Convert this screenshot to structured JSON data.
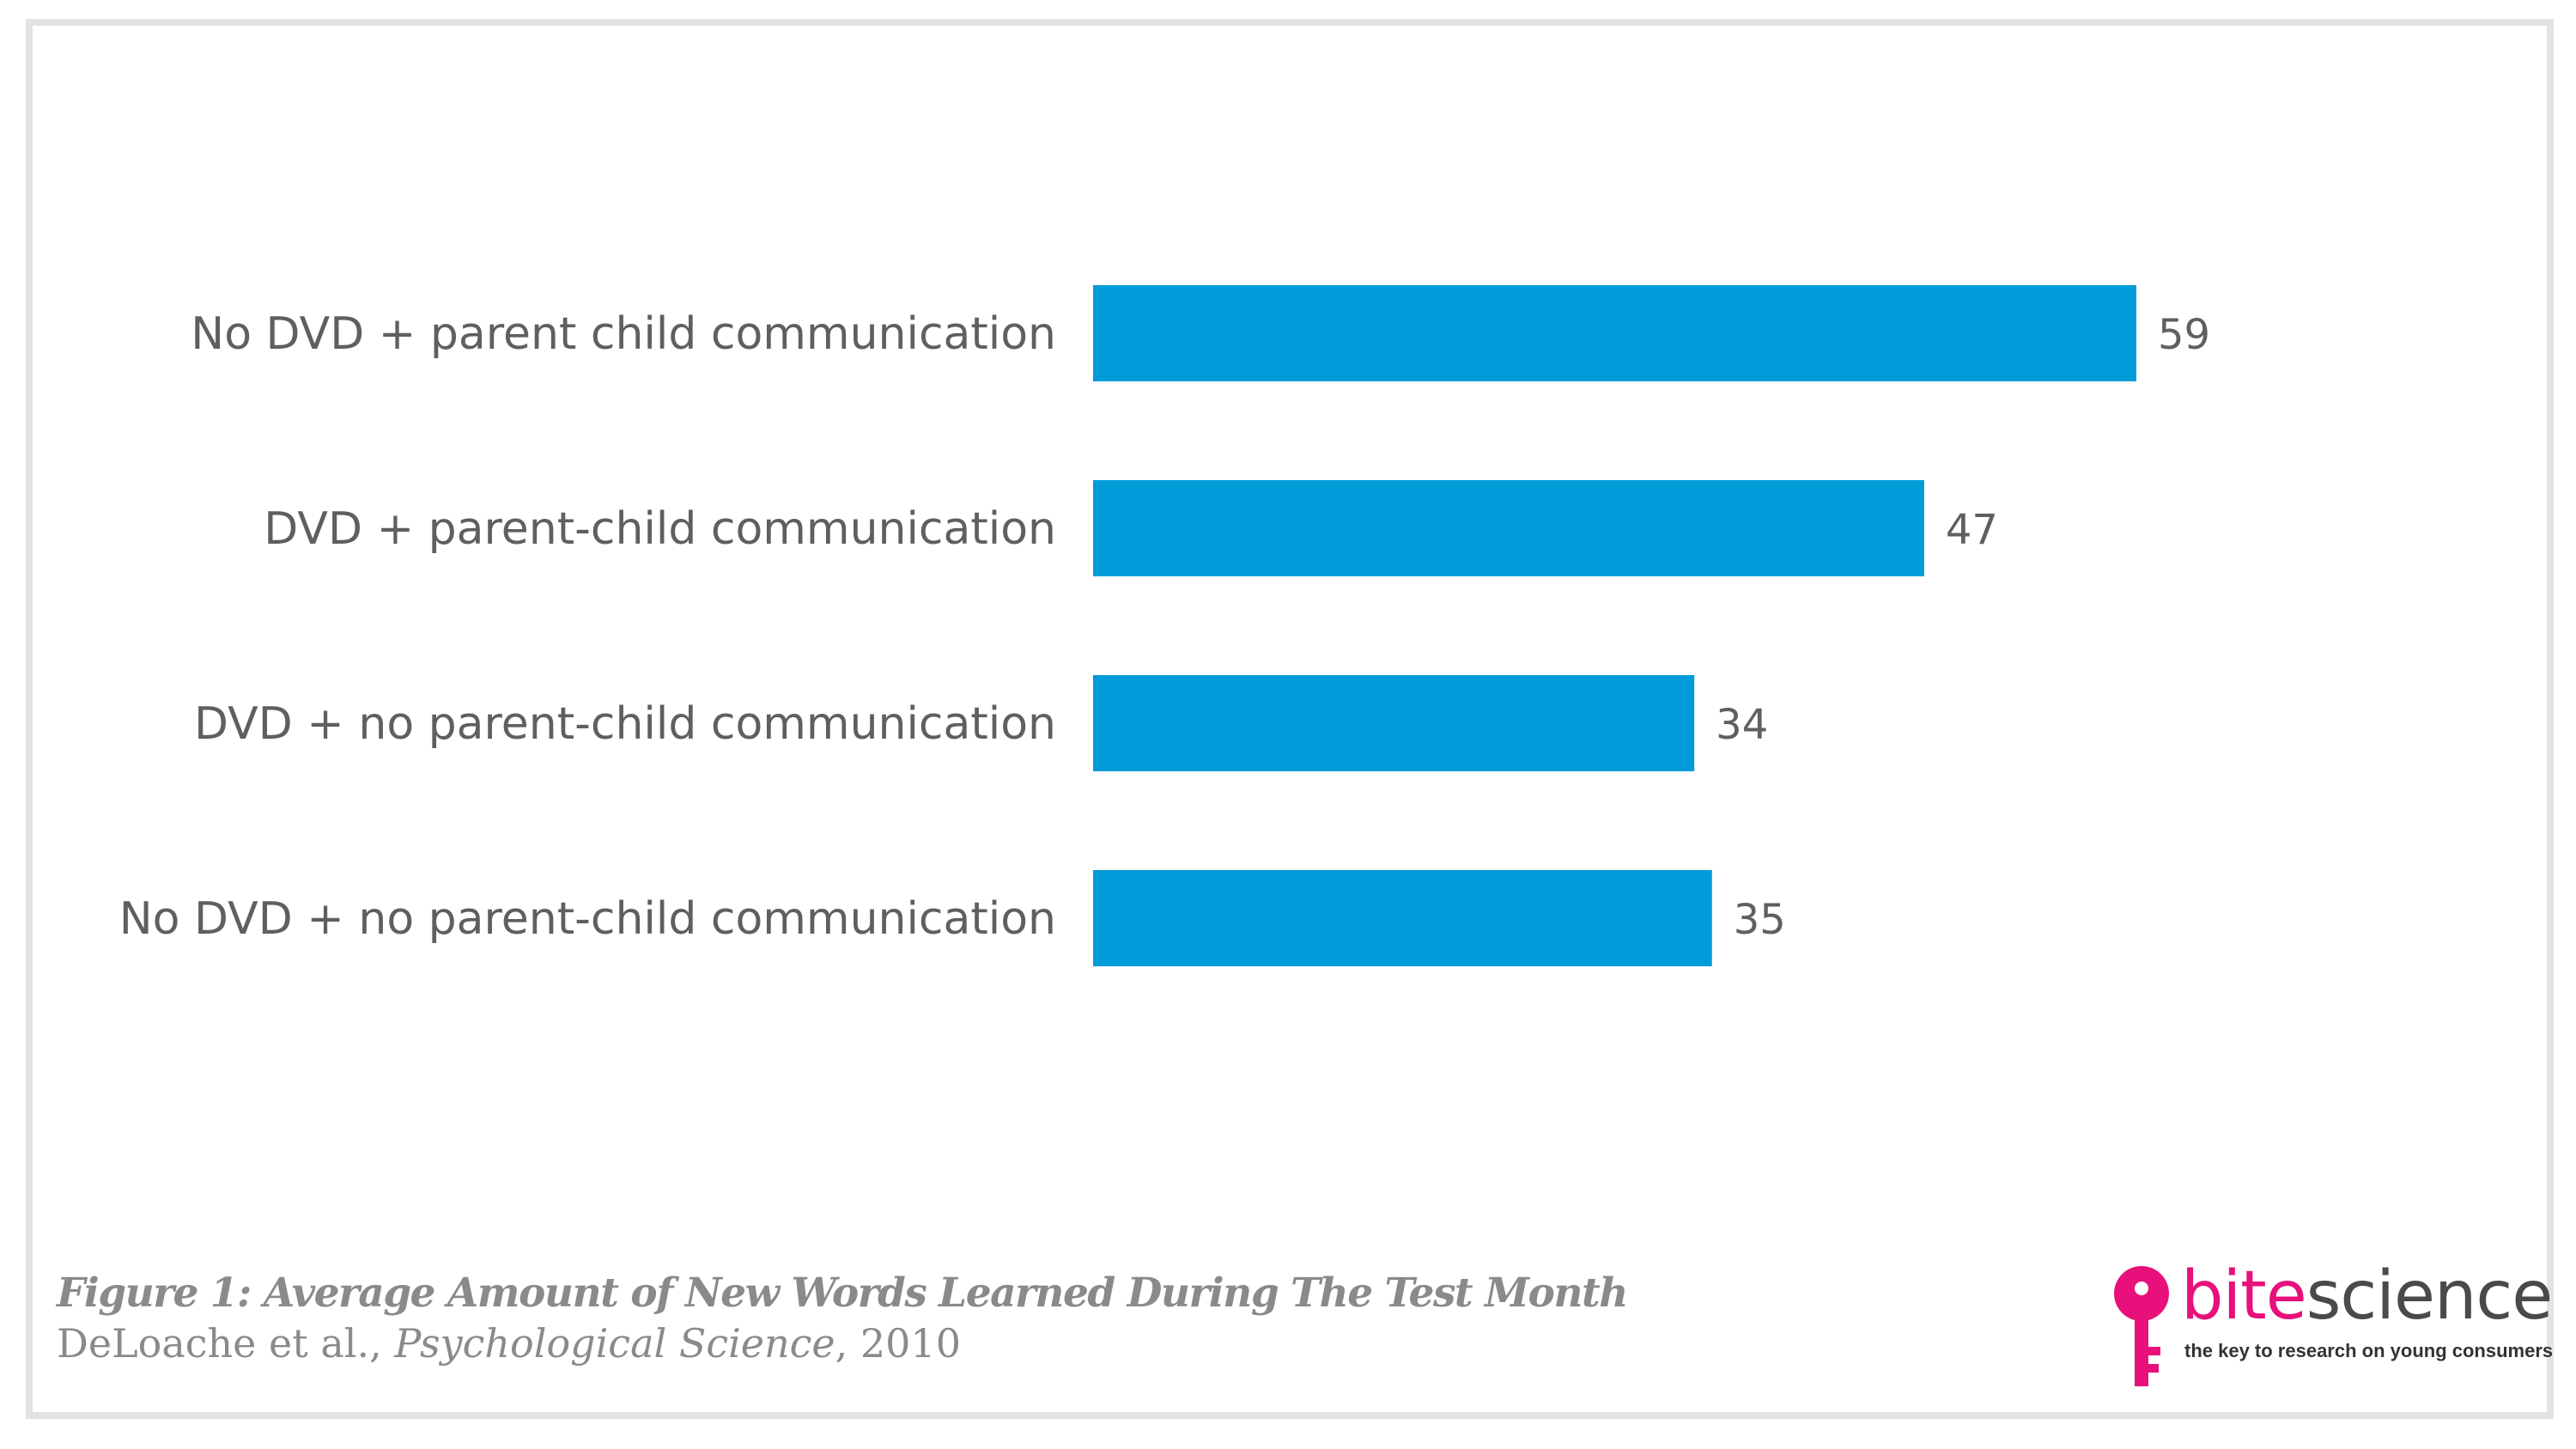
{
  "chart_data": {
    "type": "bar",
    "orientation": "horizontal",
    "categories": [
      "No DVD + parent child communication",
      "DVD + parent-child communication",
      "DVD + no parent-child communication",
      "No DVD + no parent-child communication"
    ],
    "values": [
      59,
      47,
      34,
      35
    ],
    "value_labels": [
      "59",
      "47",
      "34",
      "35"
    ],
    "bar_color": "#009cd9",
    "xlim": [
      0,
      59
    ],
    "grid": false,
    "legend": "none"
  },
  "caption": {
    "title": "Figure 1: Average Amount of New Words Learned During The Test Month",
    "source_authors": "DeLoache et al., ",
    "source_journal": "Psychological Science",
    "source_year": ", 2010"
  },
  "logo": {
    "icon": "key-icon",
    "brand_part1": "bite",
    "brand_part2": "science",
    "tagline": "the key to research on young consumers",
    "brand_color": "#e8107a"
  }
}
